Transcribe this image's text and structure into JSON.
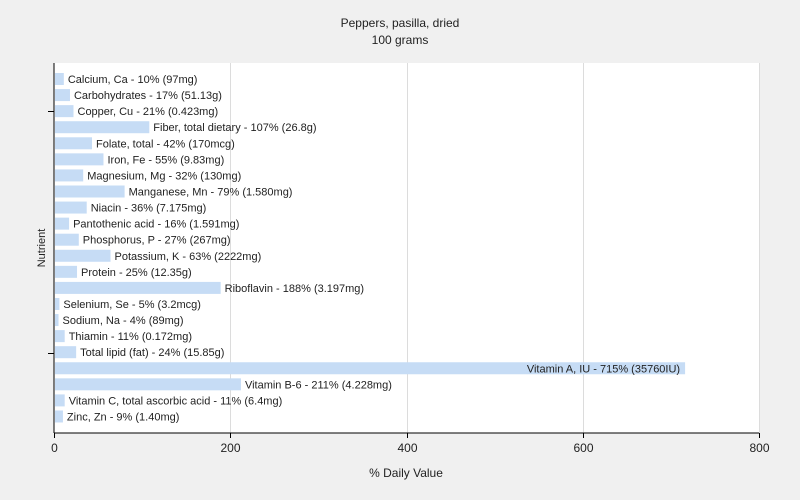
{
  "chart_data": {
    "type": "bar",
    "orientation": "horizontal",
    "title": "Peppers, pasilla, dried",
    "subtitle": "100 grams",
    "xlabel": "% Daily Value",
    "ylabel": "Nutrient",
    "xlim": [
      0,
      800
    ],
    "xticks": [
      0,
      200,
      400,
      600,
      800
    ],
    "grid": true,
    "bar_color": "#c6dcf5",
    "categories": [
      "Calcium, Ca",
      "Carbohydrates",
      "Copper, Cu",
      "Fiber, total dietary",
      "Folate, total",
      "Iron, Fe",
      "Magnesium, Mg",
      "Manganese, Mn",
      "Niacin",
      "Pantothenic acid",
      "Phosphorus, P",
      "Potassium, K",
      "Protein",
      "Riboflavin",
      "Selenium, Se",
      "Sodium, Na",
      "Thiamin",
      "Total lipid (fat)",
      "Vitamin A, IU",
      "Vitamin B-6",
      "Vitamin C, total ascorbic acid",
      "Zinc, Zn"
    ],
    "values": [
      10,
      17,
      21,
      107,
      42,
      55,
      32,
      79,
      36,
      16,
      27,
      63,
      25,
      188,
      5,
      4,
      11,
      24,
      715,
      211,
      11,
      9
    ],
    "labels": [
      "Calcium, Ca - 10% (97mg)",
      "Carbohydrates - 17% (51.13g)",
      "Copper, Cu - 21% (0.423mg)",
      "Fiber, total dietary - 107% (26.8g)",
      "Folate, total - 42% (170mcg)",
      "Iron, Fe - 55% (9.83mg)",
      "Magnesium, Mg - 32% (130mg)",
      "Manganese, Mn - 79% (1.580mg)",
      "Niacin - 36% (7.175mg)",
      "Pantothenic acid - 16% (1.591mg)",
      "Phosphorus, P - 27% (267mg)",
      "Potassium, K - 63% (2222mg)",
      "Protein - 25% (12.35g)",
      "Riboflavin - 188% (3.197mg)",
      "Selenium, Se - 5% (3.2mcg)",
      "Sodium, Na - 4% (89mg)",
      "Thiamin - 11% (0.172mg)",
      "Total lipid (fat) - 24% (15.85g)",
      "Vitamin A, IU - 715% (35760IU)",
      "Vitamin B-6 - 211% (4.228mg)",
      "Vitamin C, total ascorbic acid - 11% (6.4mg)",
      "Zinc, Zn - 9% (1.40mg)"
    ]
  }
}
